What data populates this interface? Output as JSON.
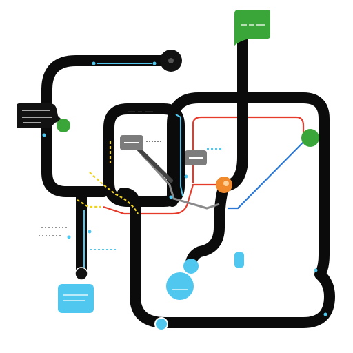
{
  "diagram": {
    "kind": "transit-style network map",
    "colors": {
      "track": "#0b0b0b",
      "accent_blue": "#4fc7ef",
      "red": "#e63b2a",
      "blue": "#2a78d6",
      "green": "#3aa63a",
      "orange": "#f08a2c",
      "yellow": "#f1d21d",
      "gray": "#8a8a8a",
      "white": "#ffffff"
    },
    "nodes": [
      {
        "name": "top-green-label",
        "shape": "callout",
        "color": "green"
      },
      {
        "name": "left-speech-callout",
        "shape": "callout",
        "color": "black"
      },
      {
        "name": "top-dark-station",
        "shape": "circle",
        "color": "black"
      },
      {
        "name": "green-station-left",
        "shape": "circle",
        "color": "green"
      },
      {
        "name": "green-station-right",
        "shape": "circle",
        "color": "green"
      },
      {
        "name": "orange-interchange",
        "shape": "circle",
        "color": "orange"
      },
      {
        "name": "blue-station-large",
        "shape": "circle",
        "color": "blue"
      },
      {
        "name": "blue-station-small",
        "shape": "circle",
        "color": "blue"
      },
      {
        "name": "blue-rounded-box",
        "shape": "rect",
        "color": "blue"
      },
      {
        "name": "blue-pill",
        "shape": "rect",
        "color": "blue"
      },
      {
        "name": "bottom-small-station",
        "shape": "circle",
        "color": "blue"
      },
      {
        "name": "ring-station",
        "shape": "circle",
        "color": "white"
      }
    ]
  }
}
